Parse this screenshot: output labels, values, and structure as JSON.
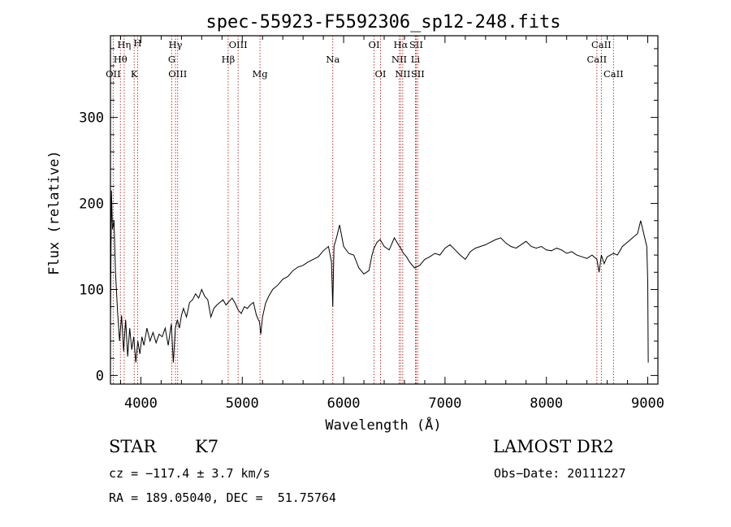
{
  "chart_data": {
    "type": "line",
    "title": "spec-55923-F5592306_sp12-248.fits",
    "xlabel": "Wavelength (Å)",
    "ylabel": "Flux (relative)",
    "xlim": [
      3700,
      9100
    ],
    "ylim": [
      -10,
      395
    ],
    "xticks": [
      4000,
      5000,
      6000,
      7000,
      8000,
      9000
    ],
    "yticks": [
      0,
      100,
      200,
      300
    ],
    "grid": false,
    "line_color": "#000000",
    "marker_color": "#b22222",
    "series": [
      {
        "x": [
          3700,
          3710,
          3720,
          3735,
          3750,
          3770,
          3790,
          3810,
          3830,
          3850,
          3870,
          3890,
          3910,
          3930,
          3950,
          3970,
          3990,
          4010,
          4030,
          4060,
          4090,
          4120,
          4150,
          4180,
          4210,
          4240,
          4270,
          4300,
          4320,
          4340,
          4360,
          4380,
          4400,
          4420,
          4450,
          4480,
          4510,
          4540,
          4570,
          4600,
          4630,
          4660,
          4690,
          4720,
          4750,
          4780,
          4810,
          4840,
          4870,
          4900,
          4930,
          4960,
          4990,
          5020,
          5050,
          5080,
          5110,
          5140,
          5170,
          5183,
          5200,
          5230,
          5260,
          5300,
          5350,
          5400,
          5450,
          5500,
          5550,
          5600,
          5650,
          5700,
          5750,
          5800,
          5850,
          5880,
          5893,
          5905,
          5930,
          5960,
          6000,
          6050,
          6100,
          6150,
          6200,
          6250,
          6280,
          6300,
          6330,
          6360,
          6400,
          6450,
          6500,
          6540,
          6563,
          6590,
          6620,
          6650,
          6700,
          6750,
          6800,
          6850,
          6900,
          6950,
          7000,
          7050,
          7100,
          7150,
          7200,
          7250,
          7300,
          7350,
          7400,
          7450,
          7500,
          7550,
          7600,
          7650,
          7700,
          7750,
          7800,
          7850,
          7900,
          7950,
          8000,
          8050,
          8100,
          8150,
          8200,
          8250,
          8300,
          8350,
          8400,
          8450,
          8498,
          8520,
          8542,
          8570,
          8600,
          8662,
          8700,
          8750,
          8800,
          8850,
          8900,
          8930,
          8950,
          8970,
          8990,
          9000,
          9005
        ],
        "y": [
          60,
          215,
          170,
          180,
          120,
          75,
          40,
          70,
          28,
          65,
          22,
          55,
          30,
          45,
          15,
          40,
          25,
          45,
          35,
          55,
          40,
          50,
          38,
          48,
          45,
          55,
          35,
          60,
          15,
          55,
          65,
          55,
          70,
          78,
          68,
          85,
          88,
          95,
          90,
          100,
          92,
          88,
          68,
          78,
          82,
          85,
          88,
          82,
          86,
          90,
          84,
          76,
          72,
          80,
          78,
          82,
          85,
          70,
          62,
          48,
          68,
          84,
          92,
          100,
          105,
          112,
          115,
          122,
          126,
          128,
          132,
          135,
          138,
          145,
          150,
          132,
          80,
          150,
          160,
          175,
          150,
          142,
          140,
          125,
          118,
          122,
          140,
          148,
          155,
          158,
          150,
          146,
          160,
          152,
          148,
          142,
          138,
          132,
          125,
          128,
          135,
          138,
          142,
          140,
          148,
          152,
          146,
          140,
          135,
          144,
          148,
          150,
          152,
          155,
          158,
          160,
          154,
          150,
          148,
          152,
          156,
          150,
          148,
          150,
          146,
          145,
          148,
          146,
          142,
          144,
          140,
          138,
          136,
          140,
          135,
          120,
          140,
          130,
          138,
          142,
          140,
          150,
          155,
          160,
          165,
          180,
          170,
          160,
          150,
          110,
          15
        ]
      }
    ],
    "spectral_lines": [
      {
        "label": "OII",
        "x": 3727,
        "row": 3
      },
      {
        "label": "Hθ",
        "x": 3798,
        "row": 2
      },
      {
        "label": "Hη",
        "x": 3835,
        "row": 1
      },
      {
        "label": "K",
        "x": 3934,
        "row": 3
      },
      {
        "label": "H",
        "x": 3968,
        "row": 0
      },
      {
        "label": "G",
        "x": 4305,
        "row": 2
      },
      {
        "label": "Hγ",
        "x": 4341,
        "row": 1
      },
      {
        "label": "OIII",
        "x": 4363,
        "row": 3
      },
      {
        "label": "Hβ",
        "x": 4861,
        "row": 2
      },
      {
        "label": "OIII",
        "x": 4959,
        "row": 1
      },
      {
        "label": "Mg",
        "x": 5175,
        "row": 3
      },
      {
        "label": "Na",
        "x": 5893,
        "row": 2
      },
      {
        "label": "OI",
        "x": 6300,
        "row": 1
      },
      {
        "label": "OI",
        "x": 6364,
        "row": 3
      },
      {
        "label": "NII",
        "x": 6548,
        "row": 2
      },
      {
        "label": "Hα",
        "x": 6563,
        "row": 1
      },
      {
        "label": "NII",
        "x": 6583,
        "row": 3
      },
      {
        "label": "Li",
        "x": 6708,
        "row": 2
      },
      {
        "label": "SII",
        "x": 6716,
        "row": 1
      },
      {
        "label": "SII",
        "x": 6731,
        "row": 3
      },
      {
        "label": "CaII",
        "x": 8498,
        "row": 2
      },
      {
        "label": "CaII",
        "x": 8542,
        "row": 1
      },
      {
        "label": "CaII",
        "x": 8662,
        "row": 3
      }
    ]
  },
  "info": {
    "object_class": "STAR",
    "subclass": "K7",
    "survey": "LAMOST DR2",
    "redshift_line": "cz = −117.4 ± 3.7 km/s",
    "obs_date": "Obs−Date: 20111227",
    "coords": "RA = 189.05040, DEC =  51.75764"
  }
}
